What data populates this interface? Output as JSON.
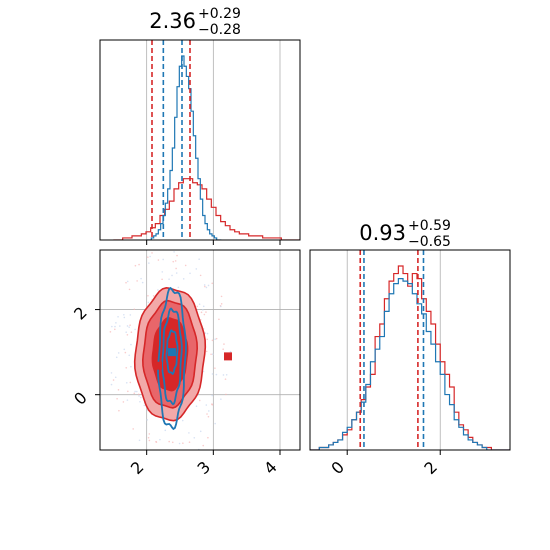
{
  "chart_data": {
    "type": "corner",
    "colors": {
      "red": "#d62728",
      "blue": "#1f77b4",
      "red_fill": "#e8666a",
      "red_fill_light": "#f2a9a9",
      "grid": "#b0b0b0",
      "frame": "#000000"
    },
    "grid": true,
    "axes": {
      "x1": {
        "range": [
          1.3,
          4.3
        ],
        "ticks": [
          2,
          3,
          4
        ],
        "tick_labels": [
          "2",
          "3",
          "4"
        ]
      },
      "x2": {
        "range": [
          -0.8,
          3.5
        ],
        "ticks": [
          0,
          2
        ],
        "tick_labels": [
          "0",
          "2"
        ]
      },
      "y2": {
        "range": [
          -1.3,
          3.4
        ],
        "ticks": [
          0,
          2
        ],
        "tick_labels": [
          "0",
          "2"
        ]
      }
    },
    "titles": [
      {
        "value": "2.36",
        "plus": "+0.29",
        "minus": "−0.28"
      },
      {
        "value": "0.93",
        "plus": "+0.59",
        "minus": "−0.65"
      }
    ],
    "hist1_red": {
      "x_start": 1.5,
      "bin_width": 0.07,
      "counts": [
        0,
        0,
        1,
        1,
        2,
        2,
        3,
        4,
        6,
        8,
        12,
        15,
        19,
        25,
        28,
        30,
        30,
        28,
        27,
        25,
        20,
        16,
        12,
        9,
        7,
        5,
        4,
        3,
        3,
        2,
        2,
        2,
        1,
        1,
        1,
        1,
        0,
        0,
        0,
        0,
        0,
        0
      ]
    },
    "hist1_blue": {
      "x_start": 2.0,
      "bin_width": 0.035,
      "counts": [
        0,
        0,
        1,
        2,
        3,
        5,
        8,
        12,
        18,
        25,
        34,
        45,
        60,
        75,
        85,
        90,
        85,
        80,
        74,
        63,
        51,
        40,
        30,
        20,
        12,
        8,
        5,
        3,
        2,
        1,
        0,
        0
      ]
    },
    "hist1_lines": {
      "red": [
        2.08,
        2.65
      ],
      "blue": [
        2.25,
        2.53
      ]
    },
    "hist2_red": {
      "x_start": -0.8,
      "bin_width": 0.1,
      "counts": [
        0,
        0,
        1,
        1,
        2,
        3,
        4,
        6,
        8,
        12,
        15,
        20,
        25,
        30,
        45,
        50,
        60,
        67,
        70,
        73,
        70,
        65,
        70,
        68,
        60,
        55,
        50,
        42,
        35,
        30,
        25,
        15,
        10,
        8,
        5,
        3,
        2,
        1,
        1,
        0,
        0,
        0,
        0
      ]
    },
    "hist2_blue": {
      "x_start": -0.8,
      "bin_width": 0.1,
      "counts": [
        0,
        0,
        1,
        1,
        2,
        3,
        4,
        7,
        9,
        12,
        15,
        19,
        26,
        35,
        40,
        45,
        55,
        62,
        66,
        68,
        67,
        66,
        62,
        58,
        54,
        47,
        42,
        35,
        30,
        22,
        18,
        12,
        9,
        6,
        4,
        3,
        2,
        1,
        0,
        0,
        0,
        0,
        0
      ]
    },
    "hist2_lines": {
      "red": [
        0.28,
        1.52
      ],
      "blue": [
        0.36,
        1.64
      ]
    },
    "contours": {
      "red": [
        {
          "cx": 2.35,
          "cy": 0.95,
          "rx": 0.52,
          "ry": 1.55,
          "fill": "red_fill_light"
        },
        {
          "cx": 2.35,
          "cy": 0.95,
          "rx": 0.4,
          "ry": 1.25,
          "fill": "red_fill"
        },
        {
          "cx": 2.35,
          "cy": 0.95,
          "rx": 0.26,
          "ry": 0.85,
          "fill": "red"
        }
      ],
      "blue": [
        {
          "cx": 2.38,
          "cy": 0.85,
          "rx": 0.2,
          "ry": 1.62
        },
        {
          "cx": 2.38,
          "cy": 0.9,
          "rx": 0.14,
          "ry": 1.1
        },
        {
          "cx": 2.38,
          "cy": 1.0,
          "rx": 0.08,
          "ry": 0.5
        }
      ]
    },
    "markers": [
      {
        "x": 2.38,
        "y": 1.0,
        "color": "blue"
      },
      {
        "x": 2.17,
        "y": 0.68,
        "color": "red"
      },
      {
        "x": 3.22,
        "y": 0.9,
        "color": "red"
      }
    ]
  }
}
